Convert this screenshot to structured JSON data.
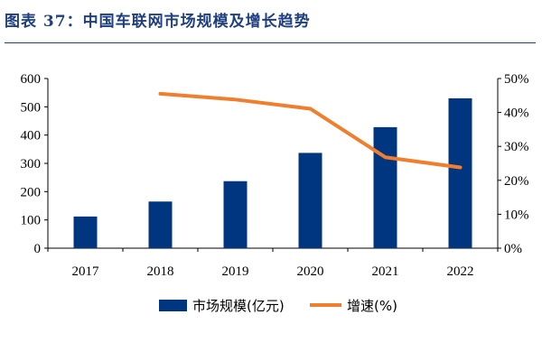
{
  "figure_title": "图表 37：中国车联网市场规模及增长趋势",
  "colors": {
    "bar": "#003680",
    "line": "#F07E2F",
    "title": "#1F3F7F"
  },
  "legend": {
    "bar_label": "市场规模(亿元)",
    "line_label": "增速(%)"
  },
  "chart_data": {
    "type": "bar+line",
    "categories": [
      "2017",
      "2018",
      "2019",
      "2020",
      "2021",
      "2022"
    ],
    "series": [
      {
        "name": "市场规模(亿元)",
        "type": "bar",
        "axis": "left",
        "values": [
          112,
          165,
          237,
          337,
          428,
          530
        ]
      },
      {
        "name": "增速(%)",
        "type": "line",
        "axis": "right",
        "values": [
          null,
          45.5,
          43.8,
          41.1,
          26.8,
          23.8
        ]
      }
    ],
    "y_left": {
      "ylim": [
        0,
        600
      ],
      "ticks": [
        0,
        100,
        200,
        300,
        400,
        500,
        600
      ]
    },
    "y_right": {
      "ylim": [
        0,
        50
      ],
      "ticks": [
        "0%",
        "10%",
        "20%",
        "30%",
        "40%",
        "50%"
      ]
    },
    "grid": false,
    "legend_position": "bottom"
  }
}
